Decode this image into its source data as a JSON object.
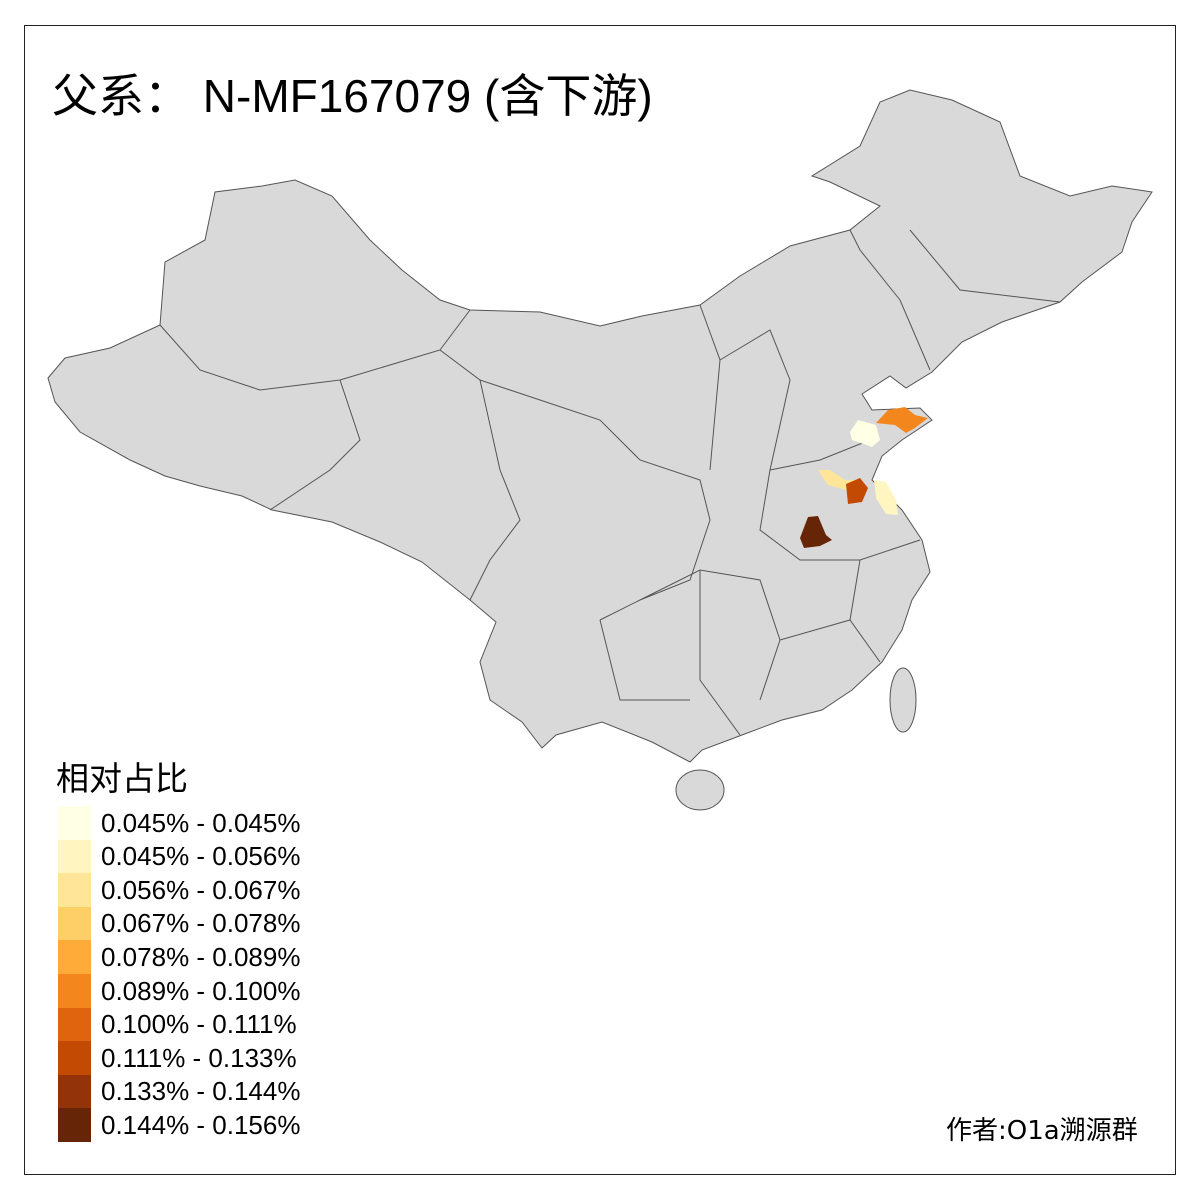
{
  "title": "父系： N-MF167079 (含下游)",
  "legend": {
    "title": "相对占比",
    "items": [
      {
        "label": "0.045% - 0.045%",
        "color": "#FFFFE5"
      },
      {
        "label": "0.045% - 0.056%",
        "color": "#FFF5C0"
      },
      {
        "label": "0.056% - 0.067%",
        "color": "#FEE597"
      },
      {
        "label": "0.067% - 0.078%",
        "color": "#FECF66"
      },
      {
        "label": "0.078% - 0.089%",
        "color": "#FEAB3A"
      },
      {
        "label": "0.089% - 0.100%",
        "color": "#F4861E"
      },
      {
        "label": "0.100% - 0.111%",
        "color": "#E0640E"
      },
      {
        "label": "0.111% - 0.133%",
        "color": "#C34A03"
      },
      {
        "label": "0.133% - 0.144%",
        "color": "#93330A"
      },
      {
        "label": "0.144% - 0.156%",
        "color": "#662506"
      }
    ]
  },
  "map": {
    "base_color": "#D9D9D9",
    "border_color": "#555555"
  },
  "credit": "作者:O1a溯源群"
}
